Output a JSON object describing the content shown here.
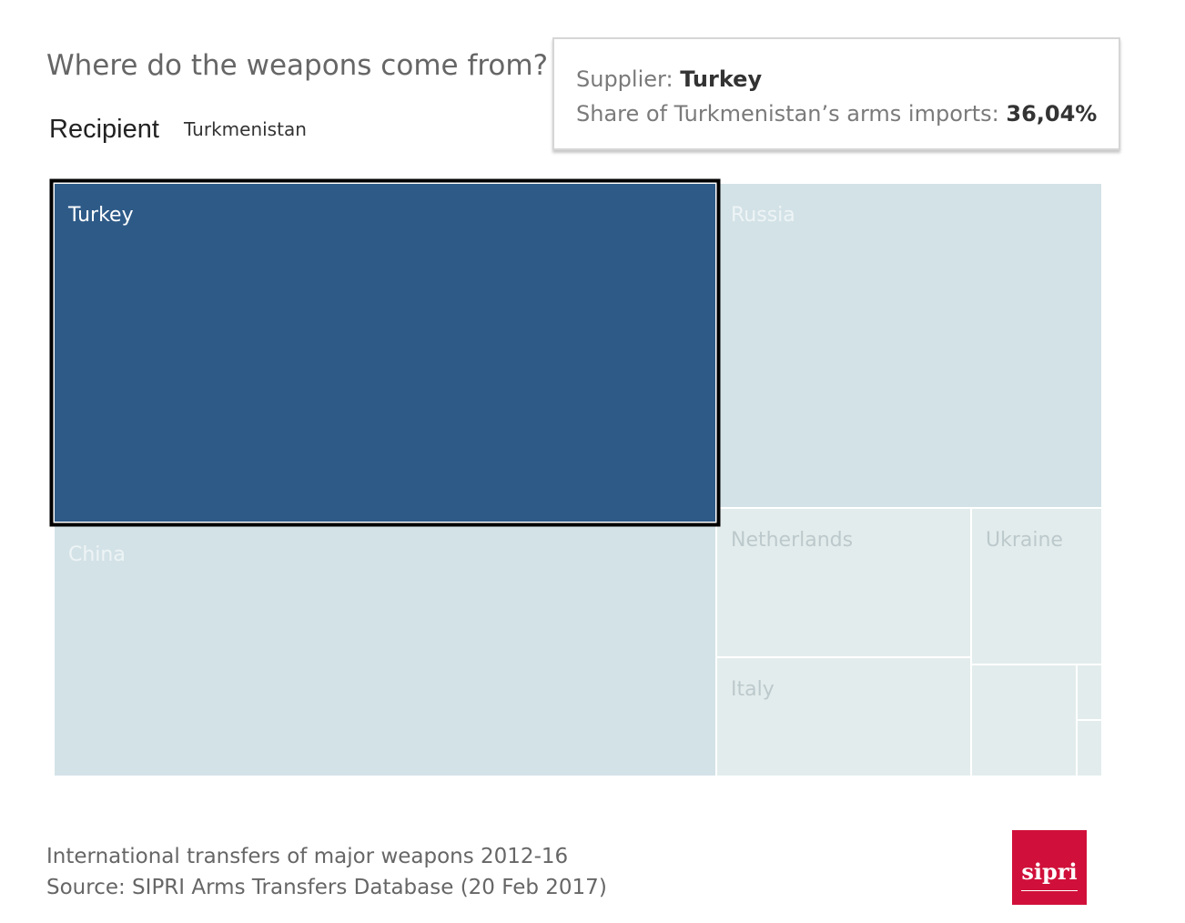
{
  "header": {
    "title": "Where do the weapons come from?",
    "recipient_label": "Recipient",
    "recipient_value": "Turkmenistan"
  },
  "tooltip": {
    "supplier_label": "Supplier: ",
    "supplier_value": "Turkey",
    "share_label": "Share of Turkmenistan’s arms imports: ",
    "share_value": "36,04%"
  },
  "chart_data": {
    "type": "treemap",
    "selected": "Turkey",
    "tiles": [
      {
        "name": "Turkey",
        "label": "Turkey",
        "share_pct": 36.04
      },
      {
        "name": "Russia",
        "label": "Russia"
      },
      {
        "name": "China",
        "label": "China"
      },
      {
        "name": "Netherlands",
        "label": "Netherlands"
      },
      {
        "name": "Ukraine",
        "label": "Ukraine"
      },
      {
        "name": "Italy",
        "label": "Italy"
      },
      {
        "name": "unlabeled-1",
        "label": ""
      },
      {
        "name": "unlabeled-2",
        "label": ""
      },
      {
        "name": "unlabeled-3",
        "label": ""
      }
    ],
    "colors": {
      "selected": "#2e5a87",
      "large": "#d3e2e7",
      "small": "#e3ecec",
      "tile_border": "#ffffff",
      "highlight_border": "#000000"
    }
  },
  "footer": {
    "line1": "International transfers of major weapons 2012-16",
    "line2": "Source: SIPRI Arms Transfers Database (20 Feb 2017)"
  },
  "logo": {
    "text": "sipri",
    "color": "#d0103a"
  }
}
